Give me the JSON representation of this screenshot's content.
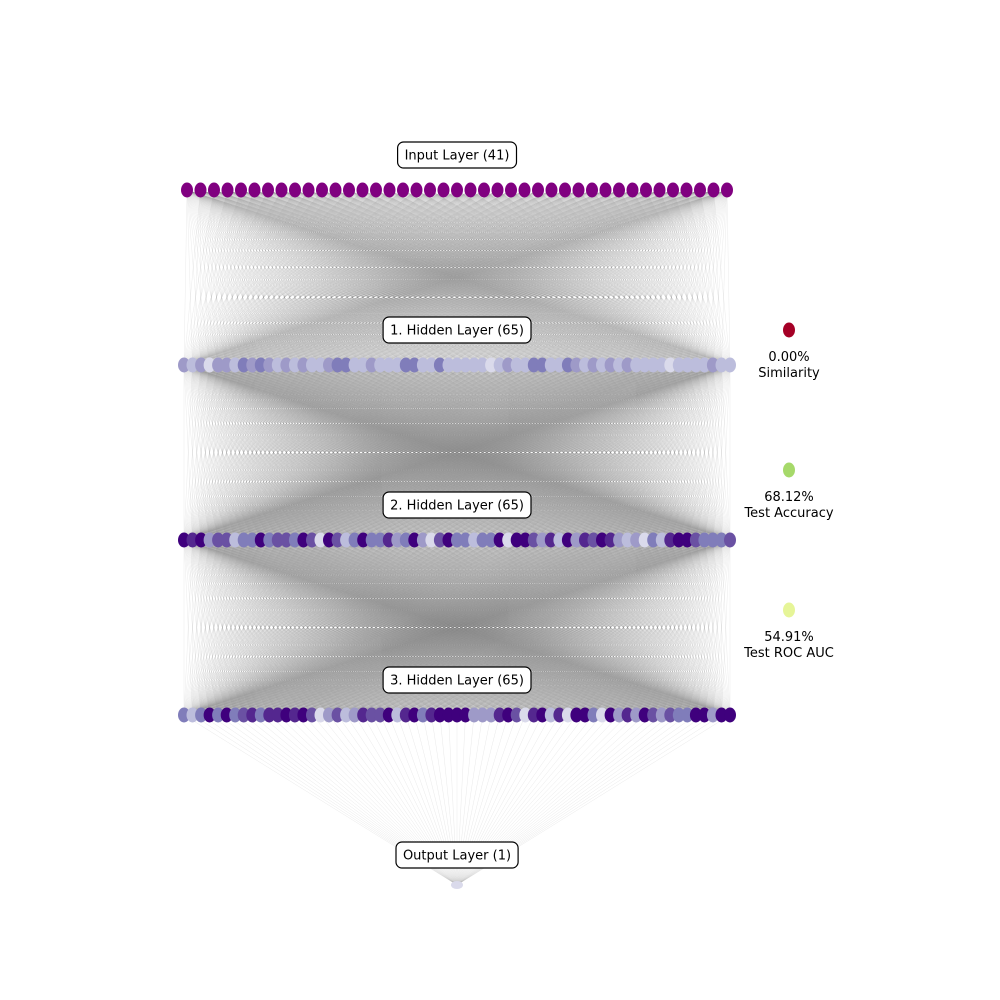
{
  "layers": [
    {
      "label": "Input Layer (41)",
      "neurons": 41,
      "palette": "input"
    },
    {
      "label": "1. Hidden Layer (65)",
      "neurons": 65,
      "palette": "light"
    },
    {
      "label": "2. Hidden Layer (65)",
      "neurons": 65,
      "palette": "mixed"
    },
    {
      "label": "3. Hidden Layer (65)",
      "neurons": 65,
      "palette": "mixed"
    },
    {
      "label": "Output Layer (1)",
      "neurons": 1,
      "palette": "output"
    }
  ],
  "metrics": [
    {
      "value": "0.00%",
      "name": "Similarity",
      "color": "#a50026"
    },
    {
      "value": "68.12%",
      "name": "Test Accuracy",
      "color": "#a6d96a"
    },
    {
      "value": "54.91%",
      "name": "Test ROC AUC",
      "color": "#e6f598"
    }
  ],
  "colors": {
    "input_node": "#800080",
    "edge": "#808080",
    "purples": [
      "#3f007d",
      "#54278f",
      "#6a51a3",
      "#807dba",
      "#9e9ac8",
      "#bcbddc",
      "#dadaeb",
      "#d9d9d9"
    ],
    "output_node": "#dadaeb"
  }
}
